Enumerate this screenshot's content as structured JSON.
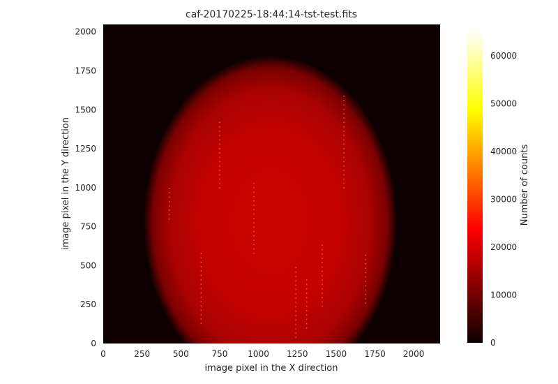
{
  "chart_data": {
    "type": "heatmap",
    "title": "caf-20170225-18:44:14-tst-test.fits",
    "xlabel": "image pixel in the X direction",
    "ylabel": "image pixel in the Y direction",
    "xlim": [
      0,
      2170
    ],
    "ylim": [
      0,
      2048
    ],
    "x_ticks": [
      "0",
      "250",
      "500",
      "750",
      "1000",
      "1250",
      "1500",
      "1750",
      "2000"
    ],
    "y_ticks": [
      "0",
      "250",
      "500",
      "750",
      "1000",
      "1250",
      "1500",
      "1750",
      "2000"
    ],
    "colormap": "hot",
    "colorbar": {
      "label": "Number of counts",
      "range": [
        0,
        65535
      ],
      "ticks": [
        "0",
        "10000",
        "20000",
        "30000",
        "40000",
        "50000",
        "60000"
      ]
    },
    "background_counts": 500,
    "illuminated_region": {
      "center": [
        1075,
        780
      ],
      "radius_x": 810,
      "radius_y": 1060,
      "peak_counts": 17000,
      "edge_counts": 11500,
      "shape": "circular flat field clipped at bottom"
    },
    "hot_pixel_columns": [
      {
        "x": 425,
        "y_range": [
          800,
          1000
        ]
      },
      {
        "x": 630,
        "y_range": [
          130,
          580
        ]
      },
      {
        "x": 750,
        "y_range": [
          1000,
          1420
        ]
      },
      {
        "x": 970,
        "y_range": [
          580,
          1040
        ]
      },
      {
        "x": 1240,
        "y_range": [
          40,
          500
        ]
      },
      {
        "x": 1310,
        "y_range": [
          100,
          420
        ]
      },
      {
        "x": 1410,
        "y_range": [
          240,
          650
        ]
      },
      {
        "x": 1550,
        "y_range": [
          1000,
          1600
        ]
      },
      {
        "x": 1690,
        "y_range": [
          260,
          580
        ]
      }
    ],
    "grid": false
  }
}
